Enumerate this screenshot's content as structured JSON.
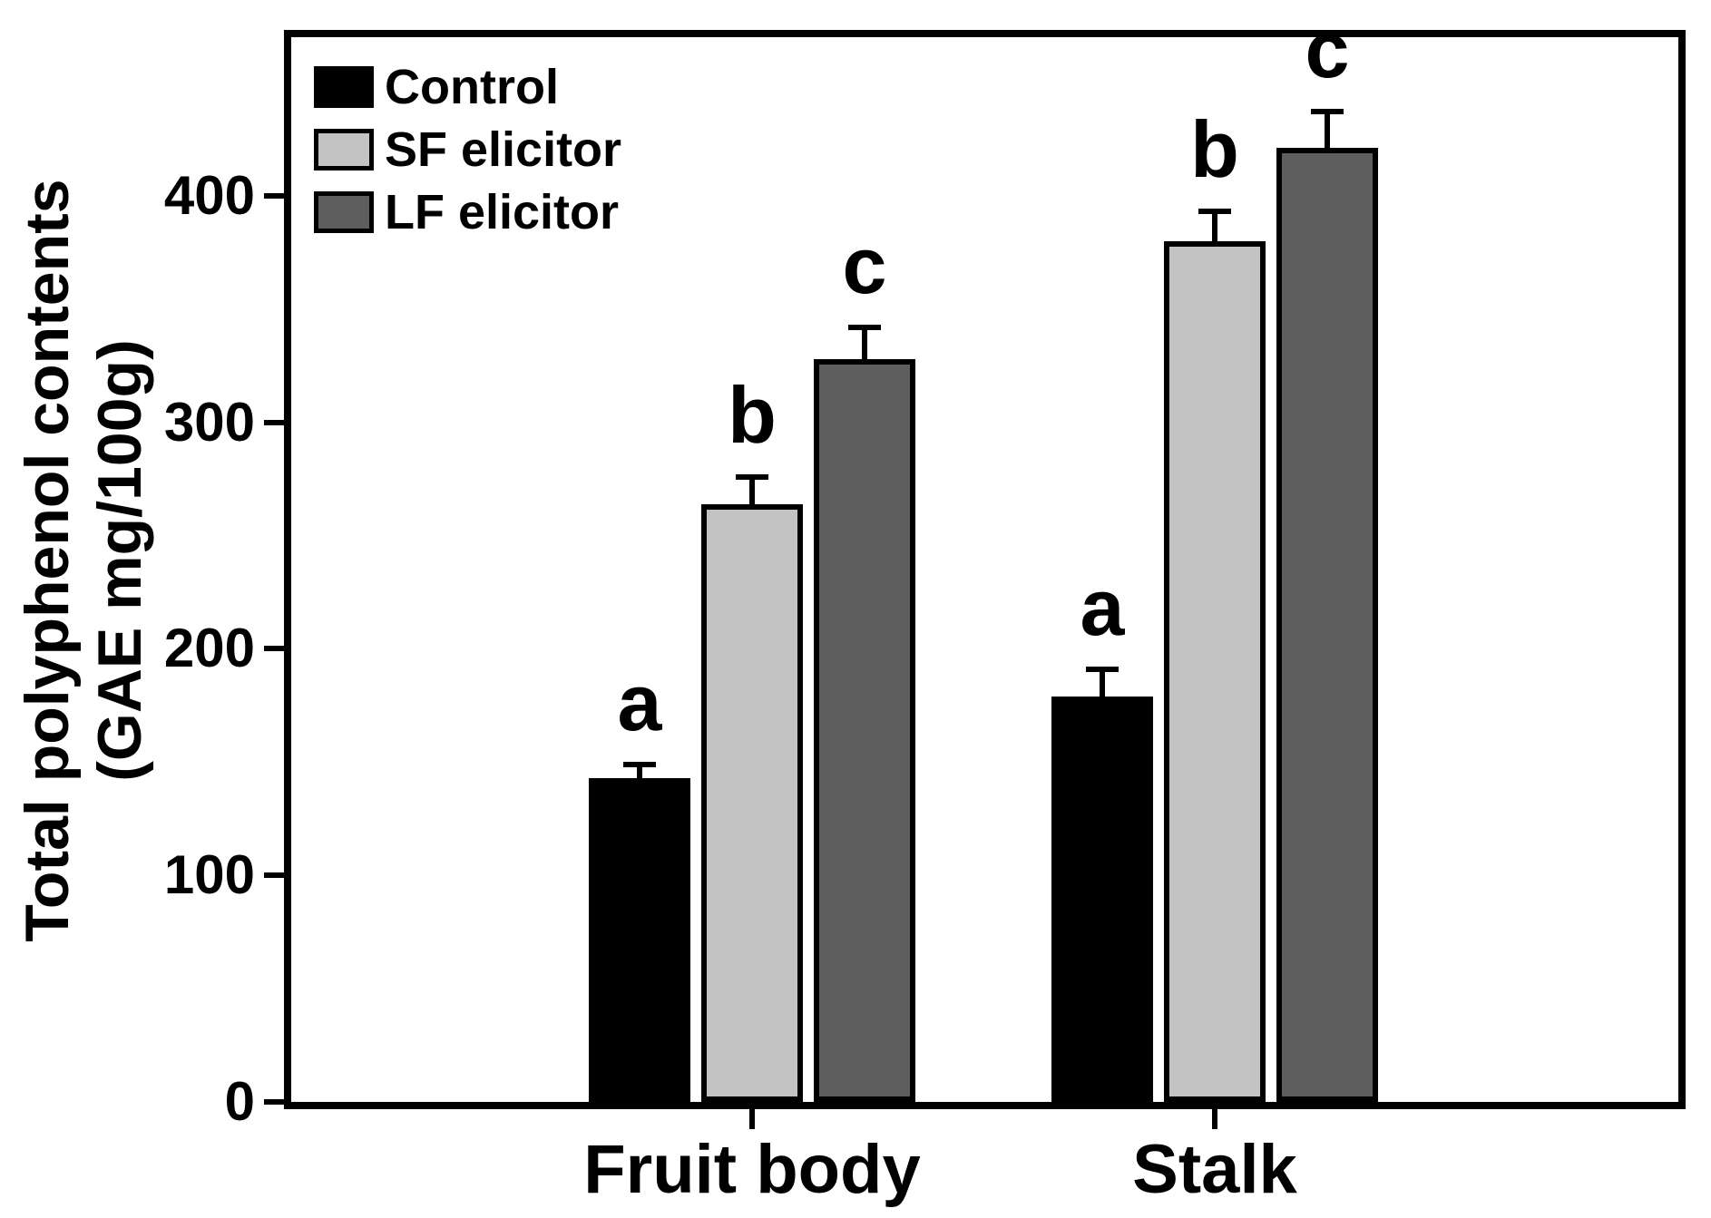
{
  "chart_data": {
    "type": "bar",
    "title": "",
    "xlabel": "",
    "ylabel": "Total polyphenol contents (GAE mg/100g)",
    "ylabel_lines": [
      "Total polyphenol contents",
      "(GAE mg/100g)"
    ],
    "categories": [
      "Fruit body",
      "Stalk"
    ],
    "series": [
      {
        "name": "Control",
        "color": "#000000",
        "values": [
          143,
          179
        ],
        "errors": [
          6,
          12
        ],
        "sig_letters": [
          "a",
          "a"
        ]
      },
      {
        "name": "SF elicitor",
        "color": "#c3c3c3",
        "values": [
          264,
          380
        ],
        "errors": [
          12,
          13
        ],
        "sig_letters": [
          "b",
          "b"
        ]
      },
      {
        "name": "LF elicitor",
        "color": "#5e5e5e",
        "values": [
          328,
          421
        ],
        "errors": [
          14,
          16
        ],
        "sig_letters": [
          "c",
          "c"
        ]
      }
    ],
    "yticks": [
      0,
      100,
      200,
      300,
      400
    ],
    "ylim": [
      0,
      470
    ],
    "grid": false,
    "legend_position": "top-left",
    "error_bars": "upper",
    "bar_edge_color": "#000000",
    "axis_color": "#000000"
  }
}
